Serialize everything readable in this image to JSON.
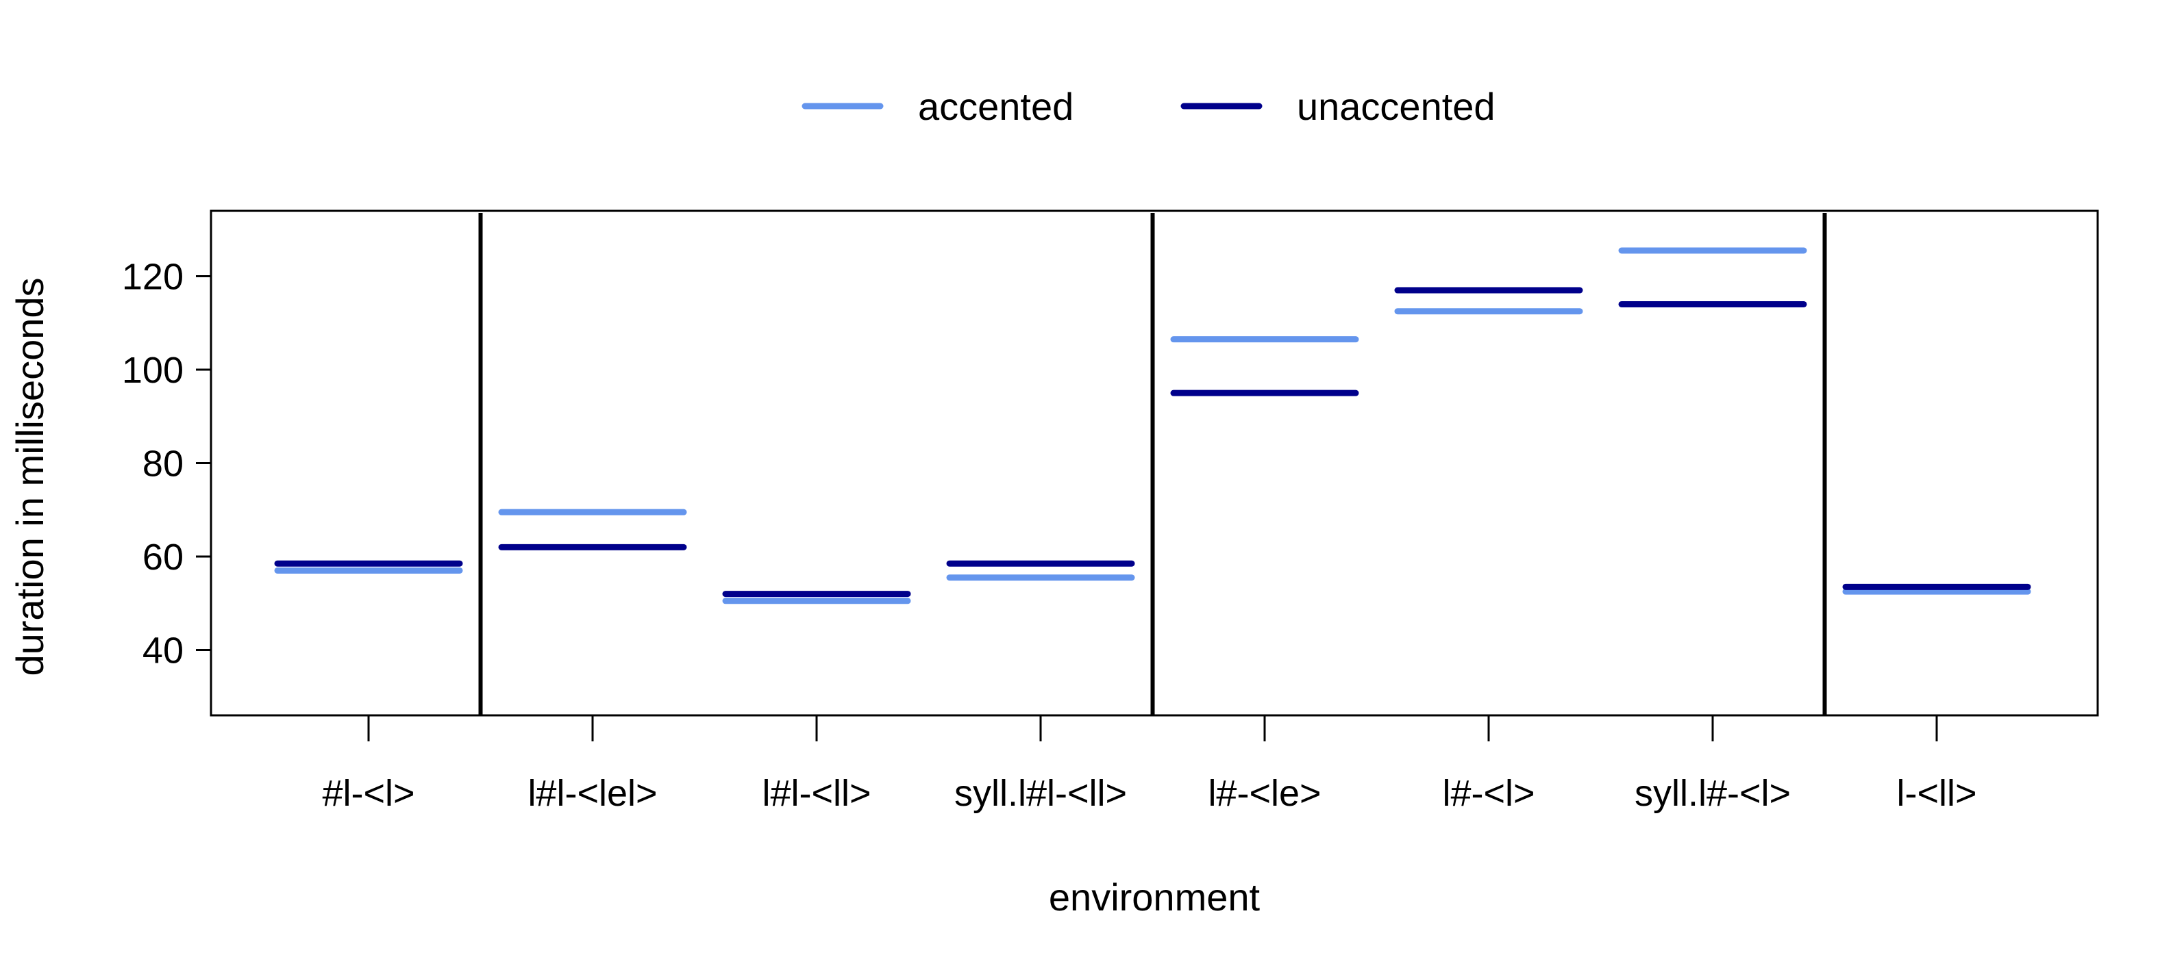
{
  "chart_data": {
    "type": "line",
    "title": "",
    "xlabel": "environment",
    "ylabel": "duration in milliseconds",
    "categories": [
      "#l-<l>",
      "l#l-<lel>",
      "l#l-<ll>",
      "syll.l#l-<ll>",
      "l#-<le>",
      "l#-<l>",
      "syll.l#-<l>",
      "l-<ll>"
    ],
    "series": [
      {
        "name": "accented",
        "color": "#6495ED",
        "values": [
          57,
          69.5,
          50.5,
          55.5,
          106.5,
          112.5,
          125.5,
          52.5
        ]
      },
      {
        "name": "unaccented",
        "color": "#00008B",
        "values": [
          58.5,
          62,
          52,
          58.5,
          95,
          117,
          114,
          53.5
        ]
      }
    ],
    "yticks": [
      40,
      60,
      80,
      100,
      120
    ],
    "ylim": [
      26,
      134
    ],
    "group_separators_after_category": [
      1,
      4,
      7
    ],
    "legend_position": "top-center",
    "grid": false
  }
}
